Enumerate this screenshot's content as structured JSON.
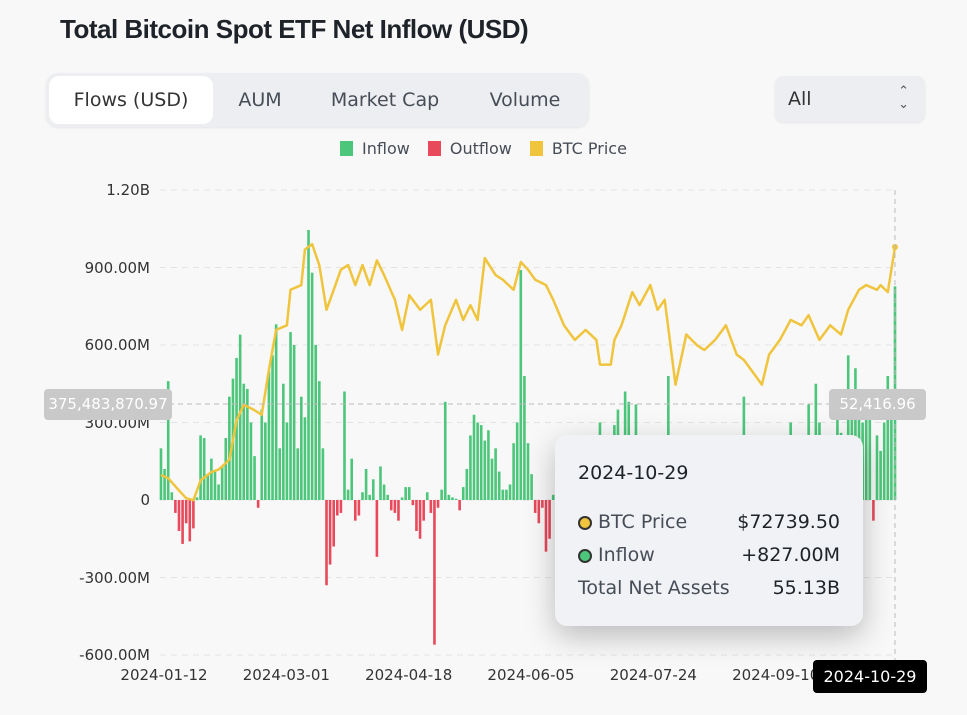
{
  "title": "Total Bitcoin Spot ETF Net Inflow (USD)",
  "tabs": [
    {
      "label": "Flows (USD)",
      "active": true
    },
    {
      "label": "AUM",
      "active": false
    },
    {
      "label": "Market Cap",
      "active": false
    },
    {
      "label": "Volume",
      "active": false
    }
  ],
  "range_select": {
    "value": "All"
  },
  "colors": {
    "inflow": "#4cc67a",
    "outflow": "#e8495b",
    "price": "#f0c43c"
  },
  "crosshair": {
    "left_value": "375,483,870.97",
    "right_value": "52,416.96",
    "date": "2024-10-29"
  },
  "tooltip": {
    "date": "2024-10-29",
    "rows": [
      {
        "label": "BTC Price",
        "value": "$72739.50"
      },
      {
        "label": "Inflow",
        "value": "+827.00M"
      },
      {
        "label": "Total Net Assets",
        "value": "55.13B"
      }
    ]
  },
  "chart_data": {
    "type": "bar+line",
    "title": "Total Bitcoin Spot ETF Net Inflow (USD)",
    "legend": [
      "Inflow",
      "Outflow",
      "BTC Price"
    ],
    "legend_position": "top-center",
    "y_ticks": [
      "1.20B",
      "900.00M",
      "600.00M",
      "300.00M",
      "0",
      "-300.00M",
      "-600.00M"
    ],
    "y_tick_values": [
      1200,
      900,
      600,
      300,
      0,
      -300,
      -600
    ],
    "ylim_millions": [
      -600,
      1200
    ],
    "price_lim": [
      20000,
      80000
    ],
    "x_ticks": [
      "2024-01-12",
      "2024-03-01",
      "2024-04-18",
      "2024-06-05",
      "2024-07-24",
      "2024-09-10"
    ],
    "x_tick_index": [
      0,
      34,
      68,
      102,
      136,
      170
    ],
    "grid": true,
    "flows_millions": [
      200,
      120,
      460,
      30,
      -50,
      -120,
      -170,
      -90,
      -160,
      -110,
      10,
      250,
      240,
      100,
      160,
      110,
      60,
      130,
      240,
      400,
      470,
      550,
      640,
      450,
      430,
      300,
      170,
      -30,
      350,
      300,
      500,
      560,
      680,
      200,
      450,
      300,
      650,
      600,
      200,
      400,
      320,
      1045,
      880,
      600,
      460,
      200,
      -330,
      -250,
      -180,
      -60,
      -50,
      420,
      40,
      160,
      -80,
      -60,
      30,
      120,
      20,
      80,
      -220,
      130,
      60,
      20,
      -40,
      -50,
      -80,
      10,
      50,
      50,
      -20,
      -120,
      -150,
      -80,
      30,
      -50,
      -560,
      -30,
      40,
      380,
      20,
      10,
      5,
      -40,
      50,
      120,
      250,
      330,
      300,
      290,
      230,
      270,
      160,
      200,
      110,
      40,
      40,
      60,
      220,
      300,
      890,
      480,
      220,
      100,
      -50,
      -90,
      -30,
      -200,
      -150,
      20,
      -80,
      120,
      60,
      180,
      -100,
      30,
      250,
      80,
      150,
      -60,
      90,
      140,
      300,
      120,
      60,
      200,
      290,
      350,
      180,
      420,
      380,
      200,
      370,
      100,
      -60,
      80,
      130,
      200,
      -40,
      100,
      240,
      480,
      60,
      -80,
      120,
      60,
      180,
      -50,
      90,
      250,
      140,
      240,
      60,
      200,
      -100,
      30,
      250,
      80,
      150,
      -30,
      120,
      60,
      400,
      180,
      -40,
      220,
      90,
      160,
      120,
      -70,
      140,
      250,
      80,
      200,
      60,
      300,
      110,
      -20,
      150,
      220,
      370,
      250,
      450,
      300,
      180,
      240,
      -90,
      150,
      320,
      260,
      190,
      560,
      420,
      510,
      420,
      300,
      380,
      350,
      -80,
      250,
      190,
      300,
      480,
      420,
      827
    ],
    "price_keyframes": [
      [
        0,
        43200
      ],
      [
        2,
        42800
      ],
      [
        5,
        41200
      ],
      [
        7,
        40200
      ],
      [
        9,
        39950
      ],
      [
        11,
        42500
      ],
      [
        14,
        43600
      ],
      [
        16,
        43900
      ],
      [
        19,
        45200
      ],
      [
        21,
        50300
      ],
      [
        23,
        52300
      ],
      [
        26,
        51600
      ],
      [
        28,
        51000
      ],
      [
        30,
        56800
      ],
      [
        32,
        62000
      ],
      [
        35,
        62600
      ],
      [
        36,
        67200
      ],
      [
        39,
        67800
      ],
      [
        40,
        72400
      ],
      [
        42,
        73100
      ],
      [
        44,
        70400
      ],
      [
        46,
        64600
      ],
      [
        48,
        67200
      ],
      [
        50,
        69800
      ],
      [
        52,
        70400
      ],
      [
        54,
        67800
      ],
      [
        56,
        70400
      ],
      [
        58,
        67800
      ],
      [
        60,
        71000
      ],
      [
        62,
        69100
      ],
      [
        65,
        65900
      ],
      [
        67,
        62000
      ],
      [
        69,
        66500
      ],
      [
        72,
        64600
      ],
      [
        75,
        65900
      ],
      [
        77,
        58800
      ],
      [
        79,
        62600
      ],
      [
        82,
        65900
      ],
      [
        84,
        63300
      ],
      [
        86,
        65200
      ],
      [
        88,
        63300
      ],
      [
        90,
        71300
      ],
      [
        93,
        69100
      ],
      [
        95,
        68500
      ],
      [
        98,
        67200
      ],
      [
        100,
        70800
      ],
      [
        102,
        69800
      ],
      [
        104,
        68500
      ],
      [
        107,
        67800
      ],
      [
        109,
        65900
      ],
      [
        112,
        62600
      ],
      [
        115,
        60700
      ],
      [
        118,
        62000
      ],
      [
        121,
        60700
      ],
      [
        122,
        57500
      ],
      [
        125,
        57500
      ],
      [
        126,
        60700
      ],
      [
        128,
        62600
      ],
      [
        131,
        66900
      ],
      [
        133,
        65200
      ],
      [
        136,
        67800
      ],
      [
        138,
        64600
      ],
      [
        140,
        65900
      ],
      [
        143,
        54900
      ],
      [
        146,
        61400
      ],
      [
        149,
        60000
      ],
      [
        151,
        59400
      ],
      [
        154,
        60700
      ],
      [
        157,
        62600
      ],
      [
        160,
        58800
      ],
      [
        162,
        58100
      ],
      [
        165,
        56200
      ],
      [
        167,
        54900
      ],
      [
        169,
        58800
      ],
      [
        172,
        60700
      ],
      [
        175,
        63300
      ],
      [
        178,
        62600
      ],
      [
        180,
        63900
      ],
      [
        183,
        60700
      ],
      [
        186,
        62600
      ],
      [
        189,
        61400
      ],
      [
        191,
        64600
      ],
      [
        194,
        67200
      ],
      [
        196,
        67800
      ],
      [
        199,
        67200
      ],
      [
        200,
        67800
      ],
      [
        202,
        66900
      ],
      [
        204,
        72739.5
      ]
    ]
  }
}
